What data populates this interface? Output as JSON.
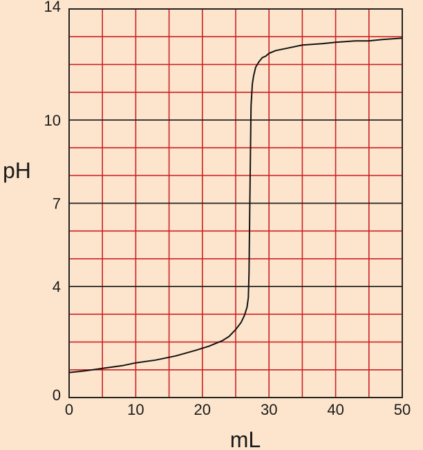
{
  "chart_data": {
    "type": "line",
    "title": "",
    "xlabel": "mL",
    "ylabel": "pH",
    "xlim": [
      0,
      50
    ],
    "ylim": [
      0,
      14
    ],
    "x_ticks": [
      0,
      10,
      20,
      30,
      40,
      50
    ],
    "x_tick_labels": [
      "0",
      "10",
      "20",
      "30",
      "40",
      "50"
    ],
    "y_ticks": [
      0,
      4,
      7,
      10,
      14
    ],
    "y_tick_labels": [
      "0",
      "4",
      "7",
      "10",
      "14"
    ],
    "grid": true,
    "grid_x_step": 5,
    "grid_y_step": 1,
    "series": [
      {
        "x": [
          0,
          2,
          5,
          8,
          10,
          13,
          16,
          19,
          21,
          23,
          24,
          25,
          25.8,
          26.3,
          26.7,
          26.9,
          27.0,
          27.1,
          27.2,
          27.3,
          27.5,
          27.7,
          28,
          28.5,
          29,
          29.5,
          30,
          31,
          33,
          35,
          38,
          40,
          43,
          45,
          47,
          50
        ],
        "y": [
          0.9,
          0.95,
          1.05,
          1.15,
          1.25,
          1.35,
          1.5,
          1.7,
          1.85,
          2.05,
          2.2,
          2.45,
          2.7,
          2.95,
          3.25,
          3.6,
          4.5,
          6.5,
          8.5,
          10.5,
          11.3,
          11.6,
          11.9,
          12.1,
          12.25,
          12.3,
          12.4,
          12.5,
          12.6,
          12.7,
          12.75,
          12.8,
          12.85,
          12.85,
          12.9,
          12.95
        ]
      }
    ],
    "colors": {
      "background": "#fce5cc",
      "grid": "#cc1f24",
      "frame": "#222222",
      "line": "#111111"
    }
  }
}
